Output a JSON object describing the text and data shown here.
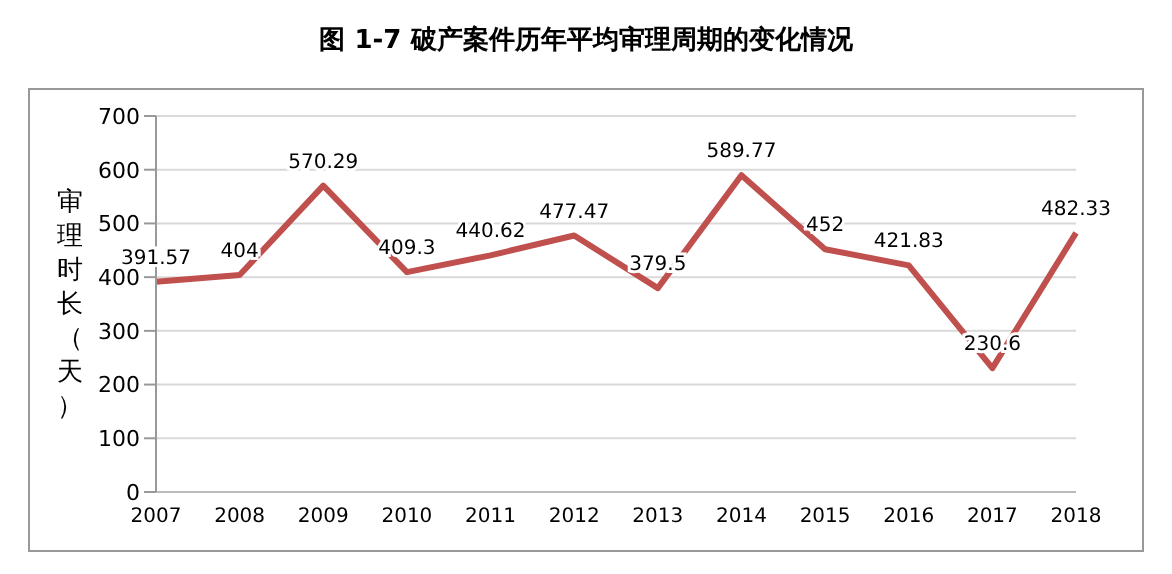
{
  "chart_data": {
    "type": "line",
    "title": "图 1-7 破产案件历年平均审理周期的变化情况",
    "ylabel": "审理时长（天）",
    "categories": [
      "2007",
      "2008",
      "2009",
      "2010",
      "2011",
      "2012",
      "2013",
      "2014",
      "2015",
      "2016",
      "2017",
      "2018"
    ],
    "series": [
      {
        "color": "#c0504d",
        "values": [
          391.57,
          404,
          570.29,
          409.3,
          440.62,
          477.47,
          379.5,
          589.77,
          452,
          421.83,
          230.6,
          482.33
        ]
      }
    ],
    "ylim": [
      0,
      700
    ],
    "yticks": [
      0,
      100,
      200,
      300,
      400,
      500,
      600,
      700
    ],
    "grid": "y",
    "data_labels": true,
    "marker": "none",
    "line_style": "solid"
  }
}
